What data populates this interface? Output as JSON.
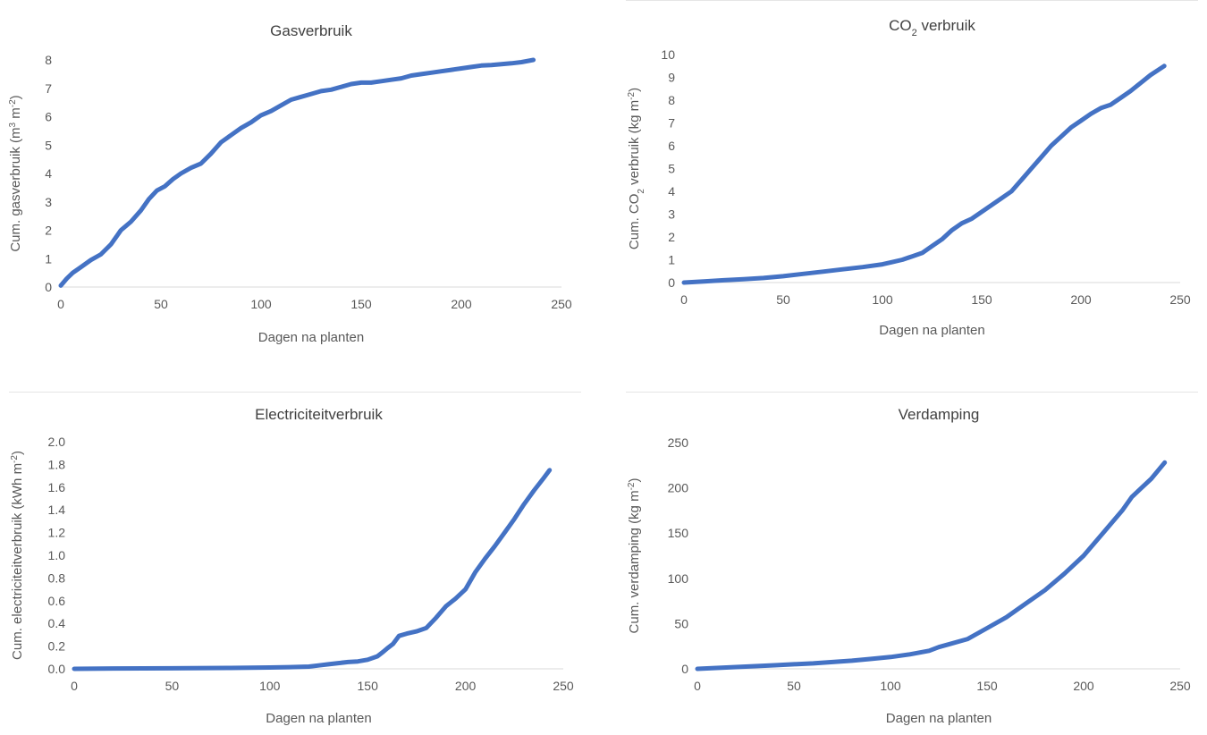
{
  "colors": {
    "series": "#4472c4",
    "axis": "#d9d9d9",
    "text": "#595959"
  },
  "chart_data": [
    {
      "type": "line",
      "title": "Gasverbruik",
      "title_main": "Gasverbruik",
      "title_sub": "",
      "title_after": "",
      "xlabel": "Dagen na planten",
      "ylabel": "Cum. gasverbruik (m3 m-2)",
      "ylabel_parts": [
        [
          "Cum. gasverbruik (m",
          ""
        ],
        [
          "3",
          "sup"
        ],
        [
          " m",
          ""
        ],
        [
          "-2",
          "sup"
        ],
        [
          ")",
          ""
        ]
      ],
      "xlim": [
        0,
        250
      ],
      "ylim": [
        0,
        8
      ],
      "xticks": [
        0,
        50,
        100,
        150,
        200,
        250
      ],
      "yticks": [
        0,
        1,
        2,
        3,
        4,
        5,
        6,
        7,
        8
      ],
      "ytick_decimals": 0,
      "grid": false,
      "series": [
        {
          "x": [
            0,
            3,
            6,
            10,
            15,
            20,
            25,
            28,
            30,
            35,
            40,
            44,
            48,
            52,
            56,
            60,
            65,
            70,
            75,
            80,
            85,
            90,
            95,
            98,
            100,
            105,
            110,
            115,
            120,
            125,
            130,
            135,
            140,
            145,
            150,
            155,
            160,
            165,
            170,
            175,
            180,
            185,
            190,
            195,
            200,
            205,
            210,
            215,
            220,
            225,
            230,
            236
          ],
          "y": [
            0.05,
            0.3,
            0.5,
            0.7,
            0.95,
            1.15,
            1.5,
            1.8,
            2.0,
            2.3,
            2.7,
            3.1,
            3.4,
            3.55,
            3.8,
            4.0,
            4.2,
            4.35,
            4.7,
            5.1,
            5.35,
            5.6,
            5.8,
            5.95,
            6.05,
            6.2,
            6.4,
            6.6,
            6.7,
            6.8,
            6.9,
            6.95,
            7.05,
            7.15,
            7.2,
            7.2,
            7.25,
            7.3,
            7.35,
            7.45,
            7.5,
            7.55,
            7.6,
            7.65,
            7.7,
            7.75,
            7.8,
            7.82,
            7.85,
            7.88,
            7.92,
            8.0
          ]
        }
      ]
    },
    {
      "type": "line",
      "title": "CO2 verbruik",
      "title_main": "CO",
      "title_sub": "2",
      "title_after": " verbruik",
      "xlabel": "Dagen na planten",
      "ylabel": "Cum. CO2 verbruik (kg m-2)",
      "ylabel_parts": [
        [
          "Cum. CO",
          ""
        ],
        [
          "2",
          "sub"
        ],
        [
          " verbruik (kg m",
          ""
        ],
        [
          "-2",
          "sup"
        ],
        [
          ")",
          ""
        ]
      ],
      "xlim": [
        0,
        250
      ],
      "ylim": [
        0,
        10
      ],
      "xticks": [
        0,
        50,
        100,
        150,
        200,
        250
      ],
      "yticks": [
        0,
        1,
        2,
        3,
        4,
        5,
        6,
        7,
        8,
        9,
        10
      ],
      "ytick_decimals": 0,
      "grid": false,
      "series": [
        {
          "x": [
            0,
            10,
            20,
            30,
            40,
            50,
            60,
            70,
            80,
            90,
            100,
            105,
            110,
            115,
            120,
            125,
            130,
            135,
            140,
            145,
            150,
            155,
            160,
            165,
            170,
            175,
            180,
            185,
            190,
            195,
            200,
            205,
            210,
            215,
            220,
            225,
            230,
            235,
            242
          ],
          "y": [
            0,
            0.05,
            0.1,
            0.15,
            0.2,
            0.28,
            0.38,
            0.48,
            0.58,
            0.68,
            0.8,
            0.9,
            1.0,
            1.15,
            1.3,
            1.6,
            1.9,
            2.3,
            2.6,
            2.8,
            3.1,
            3.4,
            3.7,
            4.0,
            4.5,
            5.0,
            5.5,
            6.0,
            6.4,
            6.8,
            7.1,
            7.4,
            7.65,
            7.8,
            8.1,
            8.4,
            8.75,
            9.1,
            9.5
          ]
        }
      ]
    },
    {
      "type": "line",
      "title": "Electriciteitverbruik",
      "title_main": "Electriciteitverbruik",
      "title_sub": "",
      "title_after": "",
      "xlabel": "Dagen na planten",
      "ylabel": "Cum. electriciteitverbruik (kWh m-2)",
      "ylabel_parts": [
        [
          "Cum. electriciteitverbruik (kWh m",
          ""
        ],
        [
          "-2",
          "sup"
        ],
        [
          ")",
          ""
        ]
      ],
      "xlim": [
        0,
        250
      ],
      "ylim": [
        0,
        2.0
      ],
      "xticks": [
        0,
        50,
        100,
        150,
        200,
        250
      ],
      "yticks": [
        0,
        0.2,
        0.4,
        0.6,
        0.8,
        1.0,
        1.2,
        1.4,
        1.6,
        1.8,
        2.0
      ],
      "ytick_decimals": 1,
      "grid": false,
      "series": [
        {
          "x": [
            0,
            20,
            50,
            80,
            100,
            110,
            120,
            125,
            130,
            135,
            140,
            145,
            150,
            155,
            158,
            160,
            163,
            166,
            170,
            175,
            180,
            185,
            190,
            195,
            200,
            205,
            210,
            215,
            220,
            225,
            230,
            235,
            240,
            243
          ],
          "y": [
            0,
            0.003,
            0.005,
            0.008,
            0.012,
            0.015,
            0.02,
            0.03,
            0.04,
            0.05,
            0.06,
            0.065,
            0.08,
            0.11,
            0.15,
            0.18,
            0.22,
            0.29,
            0.31,
            0.33,
            0.36,
            0.45,
            0.55,
            0.62,
            0.7,
            0.85,
            0.97,
            1.08,
            1.2,
            1.32,
            1.45,
            1.57,
            1.68,
            1.75
          ]
        }
      ]
    },
    {
      "type": "line",
      "title": "Verdamping",
      "title_main": "Verdamping",
      "title_sub": "",
      "title_after": "",
      "xlabel": "Dagen na planten",
      "ylabel": "Cum. verdamping (kg m-2)",
      "ylabel_parts": [
        [
          "Cum. verdamping (kg m",
          ""
        ],
        [
          "-2",
          "sup"
        ],
        [
          ")",
          ""
        ]
      ],
      "xlim": [
        0,
        250
      ],
      "ylim": [
        0,
        250
      ],
      "xticks": [
        0,
        50,
        100,
        150,
        200,
        250
      ],
      "yticks": [
        0,
        50,
        100,
        150,
        200,
        250
      ],
      "ytick_decimals": 0,
      "grid": false,
      "series": [
        {
          "x": [
            0,
            10,
            20,
            30,
            40,
            50,
            60,
            70,
            80,
            90,
            100,
            110,
            120,
            125,
            130,
            140,
            150,
            160,
            170,
            180,
            190,
            200,
            210,
            220,
            225,
            230,
            235,
            242
          ],
          "y": [
            0,
            1,
            2,
            3,
            4,
            5,
            6,
            7.5,
            9,
            11,
            13,
            16,
            20,
            24,
            27,
            33,
            45,
            57,
            72,
            87,
            105,
            125,
            150,
            175,
            190,
            200,
            210,
            228
          ]
        }
      ]
    }
  ]
}
